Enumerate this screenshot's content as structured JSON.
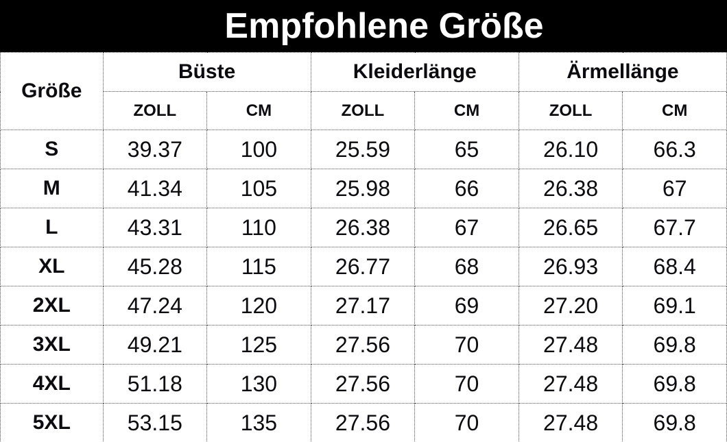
{
  "title": "Empfohlene Größe",
  "colors": {
    "banner_bg": "#000000",
    "banner_text": "#ffffff",
    "body_text": "#0b0b10",
    "border": "#4a4a4a",
    "background": "#ffffff"
  },
  "table": {
    "corner_header": "Größe",
    "groups": [
      {
        "label": "Büste"
      },
      {
        "label": "Kleiderlänge"
      },
      {
        "label": "Ärmellänge"
      }
    ],
    "units": [
      "ZOLL",
      "CM",
      "ZOLL",
      "CM",
      "ZOLL",
      "CM"
    ],
    "rows": [
      {
        "size": "S",
        "values": [
          "39.37",
          "100",
          "25.59",
          "65",
          "26.10",
          "66.3"
        ]
      },
      {
        "size": "M",
        "values": [
          "41.34",
          "105",
          "25.98",
          "66",
          "26.38",
          "67"
        ]
      },
      {
        "size": "L",
        "values": [
          "43.31",
          "110",
          "26.38",
          "67",
          "26.65",
          "67.7"
        ]
      },
      {
        "size": "XL",
        "values": [
          "45.28",
          "115",
          "26.77",
          "68",
          "26.93",
          "68.4"
        ]
      },
      {
        "size": "2XL",
        "values": [
          "47.24",
          "120",
          "27.17",
          "69",
          "27.20",
          "69.1"
        ]
      },
      {
        "size": "3XL",
        "values": [
          "49.21",
          "125",
          "27.56",
          "70",
          "27.48",
          "69.8"
        ]
      },
      {
        "size": "4XL",
        "values": [
          "51.18",
          "130",
          "27.56",
          "70",
          "27.48",
          "69.8"
        ]
      },
      {
        "size": "5XL",
        "values": [
          "53.15",
          "135",
          "27.56",
          "70",
          "27.48",
          "69.8"
        ]
      }
    ]
  },
  "chart_data": {
    "type": "table",
    "title": "Empfohlene Größe",
    "column_groups": [
      "Büste",
      "Kleiderlänge",
      "Ärmellänge"
    ],
    "columns": [
      "Größe",
      "Büste ZOLL",
      "Büste CM",
      "Kleiderlänge ZOLL",
      "Kleiderlänge CM",
      "Ärmellänge ZOLL",
      "Ärmellänge CM"
    ],
    "rows": [
      [
        "S",
        39.37,
        100,
        25.59,
        65,
        26.1,
        66.3
      ],
      [
        "M",
        41.34,
        105,
        25.98,
        66,
        26.38,
        67
      ],
      [
        "L",
        43.31,
        110,
        26.38,
        67,
        26.65,
        67.7
      ],
      [
        "XL",
        45.28,
        115,
        26.77,
        68,
        26.93,
        68.4
      ],
      [
        "2XL",
        47.24,
        120,
        27.17,
        69,
        27.2,
        69.1
      ],
      [
        "3XL",
        49.21,
        125,
        27.56,
        70,
        27.48,
        69.8
      ],
      [
        "4XL",
        51.18,
        130,
        27.56,
        70,
        27.48,
        69.8
      ],
      [
        "5XL",
        53.15,
        135,
        27.56,
        70,
        27.48,
        69.8
      ]
    ]
  }
}
